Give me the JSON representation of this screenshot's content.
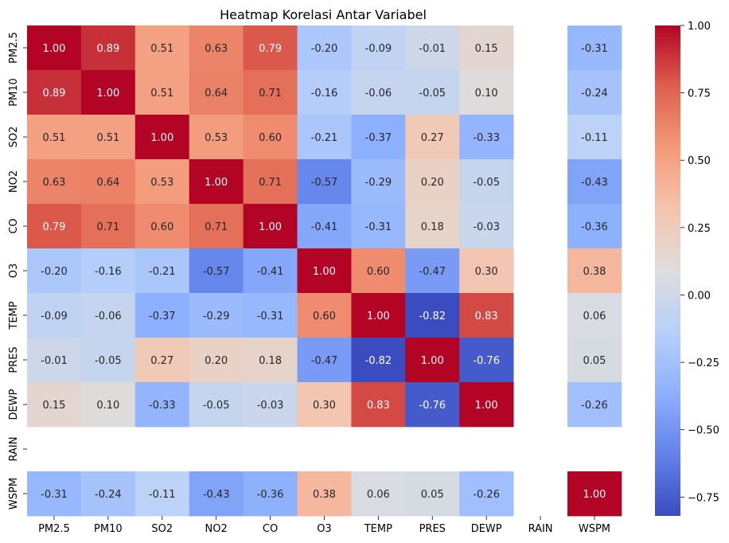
{
  "chart_data": {
    "type": "heatmap",
    "title": "Heatmap Korelasi Antar Variabel",
    "row_labels": [
      "PM2.5",
      "PM10",
      "SO2",
      "NO2",
      "CO",
      "O3",
      "TEMP",
      "PRES",
      "DEWP",
      "RAIN",
      "WSPM"
    ],
    "col_labels": [
      "PM2.5",
      "PM10",
      "SO2",
      "NO2",
      "CO",
      "O3",
      "TEMP",
      "PRES",
      "DEWP",
      "RAIN",
      "WSPM"
    ],
    "values": [
      [
        1.0,
        0.89,
        0.51,
        0.63,
        0.79,
        -0.2,
        -0.09,
        -0.01,
        0.15,
        null,
        -0.31
      ],
      [
        0.89,
        1.0,
        0.51,
        0.64,
        0.71,
        -0.16,
        -0.06,
        -0.05,
        0.1,
        null,
        -0.24
      ],
      [
        0.51,
        0.51,
        1.0,
        0.53,
        0.6,
        -0.21,
        -0.37,
        0.27,
        -0.33,
        null,
        -0.11
      ],
      [
        0.63,
        0.64,
        0.53,
        1.0,
        0.71,
        -0.57,
        -0.29,
        0.2,
        -0.05,
        null,
        -0.43
      ],
      [
        0.79,
        0.71,
        0.6,
        0.71,
        1.0,
        -0.41,
        -0.31,
        0.18,
        -0.03,
        null,
        -0.36
      ],
      [
        -0.2,
        -0.16,
        -0.21,
        -0.57,
        -0.41,
        1.0,
        0.6,
        -0.47,
        0.3,
        null,
        0.38
      ],
      [
        -0.09,
        -0.06,
        -0.37,
        -0.29,
        -0.31,
        0.6,
        1.0,
        -0.82,
        0.83,
        null,
        0.06
      ],
      [
        -0.01,
        -0.05,
        0.27,
        0.2,
        0.18,
        -0.47,
        -0.82,
        1.0,
        -0.76,
        null,
        0.05
      ],
      [
        0.15,
        0.1,
        -0.33,
        -0.05,
        -0.03,
        0.3,
        0.83,
        -0.76,
        1.0,
        null,
        -0.26
      ],
      [
        null,
        null,
        null,
        null,
        null,
        null,
        null,
        null,
        null,
        null,
        null
      ],
      [
        -0.31,
        -0.24,
        -0.11,
        -0.43,
        -0.36,
        0.38,
        0.06,
        0.05,
        -0.26,
        null,
        1.0
      ]
    ],
    "value_format": "2 decimals",
    "colormap": "coolwarm",
    "colorbar": {
      "vmin": -0.82,
      "vmax": 1.0,
      "ticks": [
        1.0,
        0.75,
        0.5,
        0.25,
        0.0,
        -0.25,
        -0.5,
        -0.75
      ],
      "tick_labels": [
        "1.00",
        "0.75",
        "0.50",
        "0.25",
        "0.00",
        "−0.25",
        "−0.50",
        "−0.75"
      ],
      "placement": "right"
    },
    "grid": false
  }
}
